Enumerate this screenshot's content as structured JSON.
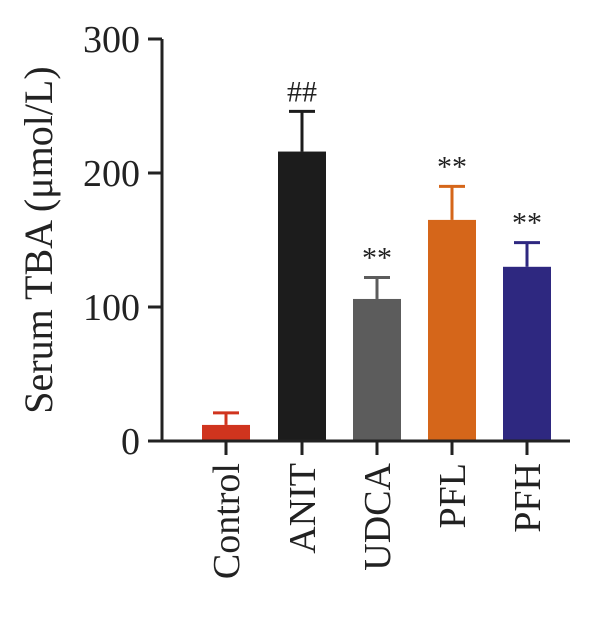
{
  "chart_data": {
    "type": "bar",
    "ylabel": "Serum TBA (μmol/L)",
    "xlabel": "",
    "ylim": [
      0,
      300
    ],
    "yticks": [
      0,
      100,
      200,
      300
    ],
    "grid": false,
    "categories": [
      "Control",
      "ANIT",
      "UDCA",
      "PFL",
      "PFH"
    ],
    "values": [
      12,
      216,
      106,
      165,
      130
    ],
    "errors": [
      9,
      30,
      16,
      25,
      18
    ],
    "annotations": [
      "",
      "##",
      "**",
      "**",
      "**"
    ],
    "colors": [
      "#d0341e",
      "#1c1c1c",
      "#5c5c5c",
      "#d5661a",
      "#2e2880"
    ]
  }
}
